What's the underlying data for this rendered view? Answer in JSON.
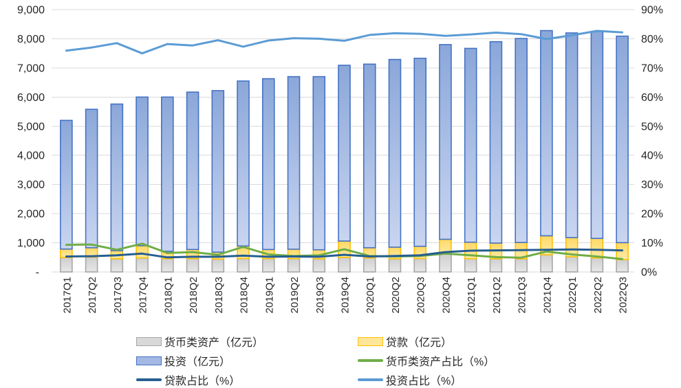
{
  "chart_data": {
    "type": "bar",
    "subtype": "stacked-bars-with-ratio-lines",
    "categories": [
      "2017Q1",
      "2017Q2",
      "2017Q3",
      "2017Q4",
      "2018Q1",
      "2018Q2",
      "2018Q3",
      "2018Q4",
      "2019Q1",
      "2019Q2",
      "2019Q3",
      "2019Q4",
      "2020Q1",
      "2020Q2",
      "2020Q3",
      "2020Q4",
      "2021Q1",
      "2021Q2",
      "2021Q3",
      "2021Q4",
      "2022Q1",
      "2022Q2",
      "2022Q3"
    ],
    "series": [
      {
        "id": "monetary-assets",
        "name": "货币类资产（亿元）",
        "kind": "bar",
        "axis": "left",
        "stack_order": 0,
        "fill": "#D9D9D9",
        "fill_top": "#CFCFCF",
        "fill_bottom": "#E7E7E7",
        "border": "#A6A6A6",
        "values": [
          495,
          510,
          450,
          480,
          455,
          455,
          440,
          460,
          455,
          455,
          450,
          495,
          480,
          450,
          460,
          610,
          455,
          450,
          450,
          590,
          520,
          480,
          420
        ]
      },
      {
        "id": "loans",
        "name": "贷款（亿元）",
        "kind": "bar",
        "axis": "left",
        "stack_order": 1,
        "fill": "#FFE699",
        "fill_top": "#FFD966",
        "fill_bottom": "#FFEAA6",
        "border": "#FFC000",
        "values": [
          290,
          320,
          280,
          420,
          255,
          315,
          240,
          430,
          315,
          325,
          310,
          565,
          350,
          400,
          420,
          510,
          565,
          540,
          560,
          650,
          660,
          670,
          585
        ]
      },
      {
        "id": "investment",
        "name": "投资（亿元）",
        "kind": "bar",
        "axis": "left",
        "stack_order": 2,
        "fill": "#A3B8E3",
        "fill_top": "#8BA7D9",
        "fill_bottom": "#C9D5F0",
        "border": "#4472C4",
        "values": [
          4415,
          4750,
          5030,
          5100,
          5290,
          5400,
          5540,
          5660,
          5860,
          5920,
          5940,
          6030,
          6300,
          6440,
          6450,
          6680,
          6650,
          6910,
          7000,
          7040,
          7020,
          7100,
          7085
        ]
      },
      {
        "id": "monetary-assets-ratio",
        "name": "货币类资产占比（%）",
        "kind": "line",
        "axis": "right",
        "color": "#70AD47",
        "values": [
          9.3,
          9.4,
          7.6,
          9.7,
          6.5,
          6.8,
          5.9,
          8.6,
          6.0,
          5.5,
          5.7,
          7.8,
          5.5,
          5.3,
          5.5,
          6.3,
          5.7,
          5.1,
          4.9,
          7.0,
          6.0,
          5.3,
          4.4
        ]
      },
      {
        "id": "loan-ratio",
        "name": "贷款占比（%）",
        "kind": "line",
        "axis": "right",
        "color": "#255E91",
        "values": [
          5.3,
          5.4,
          5.7,
          6.3,
          5.0,
          5.2,
          5.2,
          5.6,
          5.2,
          5.3,
          5.2,
          5.9,
          5.3,
          5.5,
          5.7,
          6.8,
          7.3,
          7.4,
          7.5,
          7.6,
          7.7,
          7.6,
          7.4
        ]
      },
      {
        "id": "investment-ratio",
        "name": "投资占比（%）",
        "kind": "line",
        "axis": "right",
        "color": "#5B9BD5",
        "values": [
          75.9,
          77.0,
          78.5,
          75.0,
          78.2,
          77.7,
          79.5,
          77.3,
          79.4,
          80.2,
          80.0,
          79.3,
          81.3,
          81.9,
          81.7,
          81.0,
          81.5,
          82.1,
          81.6,
          79.9,
          81.2,
          82.7,
          82.2
        ]
      }
    ],
    "left_axis": {
      "min": 0,
      "max": 9000,
      "step": 1000,
      "ticks": [
        "9,000",
        "8,000",
        "7,000",
        "6,000",
        "5,000",
        "4,000",
        "3,000",
        "2,000",
        "1,000",
        "-"
      ]
    },
    "right_axis": {
      "min": 0,
      "max": 90,
      "step": 10,
      "ticks": [
        "90%",
        "80%",
        "70%",
        "60%",
        "50%",
        "40%",
        "30%",
        "20%",
        "10%",
        "0%"
      ]
    },
    "grid": true,
    "gridline_color": "#D9D9D9",
    "tick_label_color": "#262626",
    "legend_position": "bottom"
  },
  "legend": {
    "items": [
      {
        "id": "monetary-assets",
        "label": "货币类资产（亿元）",
        "swatch": "bar",
        "fill": "#D9D9D9",
        "border": "#A6A6A6",
        "col": 0,
        "row": 0
      },
      {
        "id": "loans",
        "label": "贷款（亿元）",
        "swatch": "bar",
        "fill": "#FFE699",
        "border": "#FFC000",
        "col": 1,
        "row": 0
      },
      {
        "id": "investment",
        "label": "投资（亿元）",
        "swatch": "bar",
        "fill": "#A3B8E3",
        "border": "#4472C4",
        "col": 0,
        "row": 1
      },
      {
        "id": "monetary-assets-ratio",
        "label": "货币类资产占比（%）",
        "swatch": "line",
        "color": "#70AD47",
        "col": 1,
        "row": 1
      },
      {
        "id": "loan-ratio",
        "label": "贷款占比（%）",
        "swatch": "line",
        "color": "#255E91",
        "col": 0,
        "row": 2
      },
      {
        "id": "investment-ratio",
        "label": "投资占比（%）",
        "swatch": "line",
        "color": "#5B9BD5",
        "col": 1,
        "row": 2
      }
    ]
  }
}
